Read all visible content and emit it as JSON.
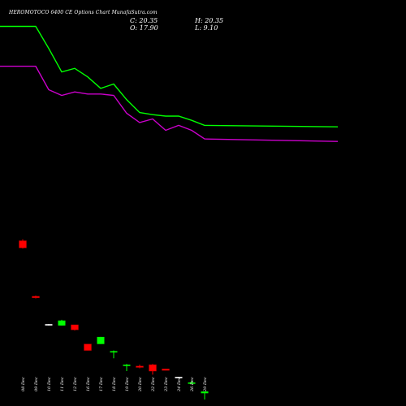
{
  "header": {
    "title": "HEROMOTOCO 6400 CE Options Chart MunafaSutra.com",
    "c": "C: 20.35",
    "h": "H: 20.35",
    "o": "O: 17.90",
    "l": "L: 9.10"
  },
  "colors": {
    "background": "#000000",
    "up": "#00ff00",
    "down": "#ff0000",
    "ma_fast": "#00ff00",
    "ma_slow": "#cc00cc",
    "flat": "#ffffff"
  },
  "chart_data": {
    "type": "candlestick",
    "title": "HEROMOTOCO 6400 CE Options Chart MunafaSutra.com",
    "grid": false,
    "y_axis_visible": false,
    "categories": [
      "08 Dec",
      "09 Dec",
      "10 Dec",
      "11 Dec",
      "12 Dec",
      "16 Dec",
      "17 Dec",
      "18 Dec",
      "19 Dec",
      "20 Dec",
      "22 Dec",
      "23 Dec",
      "24 Dec",
      "26 Dec",
      "29 Dec"
    ],
    "candles": [
      {
        "date": "08 Dec",
        "open": 232,
        "close": 222,
        "high": 234,
        "low": 221,
        "direction": "down"
      },
      {
        "date": "09 Dec",
        "open": 154,
        "close": 152,
        "high": 155,
        "low": 151,
        "direction": "down"
      },
      {
        "date": "10 Dec",
        "open": 114,
        "close": 114,
        "high": 115,
        "low": 113,
        "direction": "flat"
      },
      {
        "date": "11 Dec",
        "open": 113,
        "close": 120,
        "high": 121,
        "low": 113,
        "direction": "up"
      },
      {
        "date": "12 Dec",
        "open": 114,
        "close": 107,
        "high": 114,
        "low": 106,
        "direction": "down"
      },
      {
        "date": "16 Dec",
        "open": 87,
        "close": 78,
        "high": 87,
        "low": 78,
        "direction": "down"
      },
      {
        "date": "17 Dec",
        "open": 87,
        "close": 97,
        "high": 97,
        "low": 87,
        "direction": "up"
      },
      {
        "date": "18 Dec",
        "open": 76,
        "close": 77,
        "high": 78,
        "low": 67,
        "direction": "up"
      },
      {
        "date": "19 Dec",
        "open": 57,
        "close": 58,
        "high": 59,
        "low": 49,
        "direction": "up"
      },
      {
        "date": "20 Dec",
        "open": 56,
        "close": 55,
        "high": 58,
        "low": 53,
        "direction": "down"
      },
      {
        "date": "22 Dec",
        "open": 58,
        "close": 49,
        "high": 59,
        "low": 44,
        "direction": "down"
      },
      {
        "date": "23 Dec",
        "open": 52,
        "close": 50,
        "high": 52,
        "low": 50,
        "direction": "down"
      },
      {
        "date": "24 Dec",
        "open": 40,
        "close": 40,
        "high": 41,
        "low": 40,
        "direction": "flat"
      },
      {
        "date": "26 Dec",
        "open": 32,
        "close": 33,
        "high": 35,
        "low": 31,
        "direction": "up"
      },
      {
        "date": "29 Dec",
        "open": 17.9,
        "close": 20.35,
        "high": 20.35,
        "low": 9.1,
        "direction": "up"
      }
    ],
    "series": [
      {
        "color": "#00ff00",
        "values": [
          533,
          533,
          502,
          469,
          474,
          462,
          446,
          452,
          430,
          412,
          409,
          407,
          407,
          401,
          394
        ]
      },
      {
        "color": "#cc00cc",
        "values": [
          477,
          477,
          444,
          436,
          441,
          438,
          438,
          436,
          411,
          398,
          403,
          387,
          394,
          387,
          375
        ]
      }
    ],
    "ylim": [
      0,
      570
    ]
  }
}
